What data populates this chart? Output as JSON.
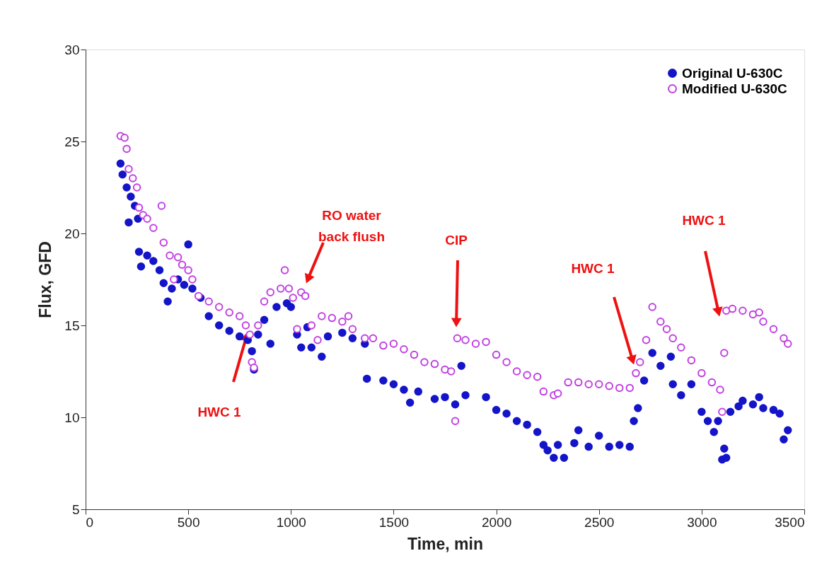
{
  "chart_data": {
    "type": "scatter",
    "xlabel": "Time, min",
    "ylabel": "Flux, GFD",
    "xlim": [
      0,
      3500
    ],
    "xticks": [
      0,
      500,
      1000,
      1500,
      2000,
      2500,
      3000,
      3500
    ],
    "ylim": [
      5,
      30
    ],
    "yticks": [
      5,
      10,
      15,
      20,
      25,
      30
    ],
    "grid": false,
    "legend": "top right",
    "marker": "circle",
    "series": [
      {
        "name": "Original U-630C",
        "color": "#1414c8",
        "x": [
          170,
          180,
          200,
          210,
          220,
          240,
          255,
          260,
          270,
          300,
          330,
          360,
          380,
          400,
          420,
          450,
          480,
          500,
          520,
          560,
          600,
          650,
          700,
          750,
          790,
          810,
          820,
          840,
          870,
          900,
          930,
          980,
          1000,
          1030,
          1050,
          1080,
          1100,
          1150,
          1180,
          1250,
          1300,
          1360,
          1370,
          1450,
          1500,
          1550,
          1580,
          1620,
          1700,
          1750,
          1800,
          1830,
          1850,
          1950,
          2000,
          2050,
          2100,
          2150,
          2200,
          2230,
          2250,
          2280,
          2300,
          2330,
          2380,
          2400,
          2450,
          2500,
          2550,
          2600,
          2650,
          2670,
          2690,
          2720,
          2760,
          2800,
          2850,
          2860,
          2900,
          2950,
          3000,
          3030,
          3060,
          3080,
          3100,
          3110,
          3120,
          3140,
          3180,
          3200,
          3250,
          3280,
          3300,
          3350,
          3380,
          3400,
          3420
        ],
        "values": [
          23.8,
          23.2,
          22.5,
          20.6,
          22.0,
          21.5,
          20.8,
          19.0,
          18.2,
          18.8,
          18.5,
          18.0,
          17.3,
          16.3,
          17.0,
          17.5,
          17.2,
          19.4,
          17.0,
          16.5,
          15.5,
          15.0,
          14.7,
          14.4,
          14.2,
          13.6,
          12.6,
          14.5,
          15.3,
          14.0,
          16.0,
          16.2,
          16.0,
          14.5,
          13.8,
          14.9,
          13.8,
          13.3,
          14.4,
          14.6,
          14.3,
          14.0,
          12.1,
          12.0,
          11.8,
          11.5,
          10.8,
          11.4,
          11.0,
          11.1,
          10.7,
          12.8,
          11.2,
          11.1,
          10.4,
          10.2,
          9.8,
          9.6,
          9.2,
          8.5,
          8.2,
          7.8,
          8.5,
          7.8,
          8.6,
          9.3,
          8.4,
          9.0,
          8.4,
          8.5,
          8.4,
          9.8,
          10.5,
          12.0,
          13.5,
          12.8,
          13.3,
          11.8,
          11.2,
          11.8,
          10.3,
          9.8,
          9.2,
          9.8,
          7.7,
          8.3,
          7.8,
          10.3,
          10.6,
          10.9,
          10.7,
          11.1,
          10.5,
          10.4,
          10.2,
          8.8,
          9.3
        ]
      },
      {
        "name": "Modified U-630C",
        "color": "#c040e0",
        "x": [
          170,
          190,
          200,
          210,
          230,
          250,
          260,
          280,
          300,
          330,
          370,
          380,
          410,
          430,
          450,
          470,
          500,
          520,
          550,
          600,
          650,
          700,
          750,
          780,
          800,
          810,
          820,
          840,
          870,
          900,
          950,
          970,
          990,
          1010,
          1030,
          1050,
          1070,
          1100,
          1130,
          1150,
          1200,
          1250,
          1280,
          1300,
          1360,
          1400,
          1450,
          1500,
          1550,
          1600,
          1650,
          1700,
          1750,
          1780,
          1800,
          1810,
          1850,
          1900,
          1950,
          2000,
          2050,
          2100,
          2150,
          2200,
          2230,
          2280,
          2300,
          2350,
          2400,
          2450,
          2500,
          2550,
          2600,
          2650,
          2680,
          2700,
          2730,
          2760,
          2800,
          2830,
          2860,
          2900,
          2950,
          3000,
          3050,
          3090,
          3100,
          3110,
          3120,
          3150,
          3200,
          3250,
          3280,
          3300,
          3350,
          3400,
          3420
        ],
        "values": [
          25.3,
          25.2,
          24.6,
          23.5,
          23.0,
          22.5,
          21.4,
          21.0,
          20.8,
          20.3,
          21.5,
          19.5,
          18.8,
          17.5,
          18.7,
          18.3,
          18.0,
          17.5,
          16.6,
          16.3,
          16.0,
          15.7,
          15.5,
          15.0,
          14.5,
          13.0,
          12.7,
          15.0,
          16.3,
          16.8,
          17.0,
          18.0,
          17.0,
          16.5,
          14.8,
          16.8,
          16.6,
          15.0,
          14.2,
          15.5,
          15.4,
          15.2,
          15.5,
          14.8,
          14.3,
          14.3,
          13.9,
          14.0,
          13.7,
          13.4,
          13.0,
          12.9,
          12.6,
          12.5,
          9.8,
          14.3,
          14.2,
          14.0,
          14.1,
          13.4,
          13.0,
          12.5,
          12.3,
          12.2,
          11.4,
          11.2,
          11.3,
          11.9,
          11.9,
          11.8,
          11.8,
          11.7,
          11.6,
          11.6,
          12.4,
          13.0,
          14.2,
          16.0,
          15.2,
          14.8,
          14.3,
          13.8,
          13.1,
          12.4,
          11.9,
          11.5,
          10.3,
          13.5,
          15.8,
          15.9,
          15.8,
          15.6,
          15.7,
          15.2,
          14.8,
          14.3,
          14.0
        ]
      }
    ],
    "annotations": [
      "HWC 1",
      "RO water\nback flush",
      "CIP",
      "HWC 1",
      "HWC 1"
    ]
  }
}
